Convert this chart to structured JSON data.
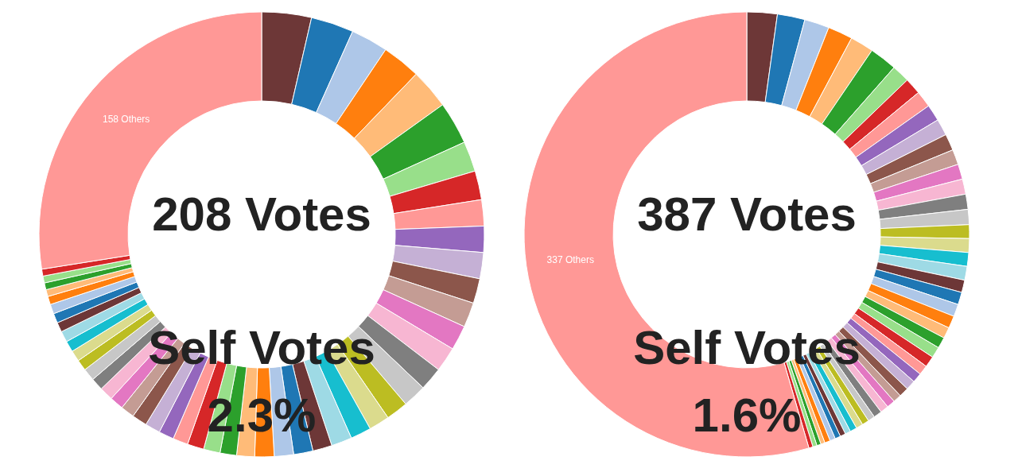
{
  "chart_data": [
    {
      "type": "donut",
      "title": "208 Votes",
      "annotations": [
        "Self Votes",
        "2.3%"
      ],
      "categories": [
        null,
        null,
        null,
        null,
        null,
        null,
        null,
        null,
        null,
        null,
        null,
        null,
        null,
        null,
        null,
        null,
        null,
        null,
        null,
        null,
        null,
        null,
        null,
        null,
        null,
        null,
        null,
        null,
        null,
        null,
        null,
        null,
        null,
        null,
        null,
        null,
        null,
        null,
        null,
        null,
        null,
        null,
        null,
        null,
        null,
        null,
        null,
        null,
        null,
        null,
        "158 Others"
      ],
      "values": [
        3.6,
        3.1,
        2.7,
        2.8,
        2.9,
        3.1,
        2.2,
        2.1,
        1.9,
        1.9,
        1.9,
        1.8,
        1.8,
        1.8,
        1.8,
        1.7,
        1.7,
        1.6,
        1.5,
        1.5,
        1.5,
        1.4,
        1.4,
        1.4,
        1.4,
        1.3,
        1.2,
        1.2,
        1.2,
        1.1,
        1.1,
        1.1,
        1.1,
        1.0,
        1.0,
        1.0,
        0.9,
        0.9,
        0.8,
        0.8,
        0.8,
        0.8,
        0.7,
        0.7,
        0.7,
        0.6,
        0.5,
        0.5,
        0.5,
        0.5,
        27.5
      ],
      "colors": [
        "#6d3737",
        "#1f77b4",
        "#aec7e8",
        "#ff7f0e",
        "#ffbb78",
        "#2ca02c",
        "#98df8a",
        "#d62728",
        "#ff9896",
        "#9467bd",
        "#c5b0d5",
        "#8c564b",
        "#c49c94",
        "#e377c2",
        "#f7b6d2",
        "#7f7f7f",
        "#c7c7c7",
        "#bcbd22",
        "#dbdb8d",
        "#17becf",
        "#9edae5",
        "#6d3737",
        "#1f77b4",
        "#aec7e8",
        "#ff7f0e",
        "#ffbb78",
        "#2ca02c",
        "#98df8a",
        "#d62728",
        "#ff9896",
        "#9467bd",
        "#c5b0d5",
        "#8c564b",
        "#c49c94",
        "#e377c2",
        "#f7b6d2",
        "#7f7f7f",
        "#c7c7c7",
        "#bcbd22",
        "#dbdb8d",
        "#17becf",
        "#9edae5",
        "#6d3737",
        "#1f77b4",
        "#aec7e8",
        "#ff7f0e",
        "#ffbb78",
        "#2ca02c",
        "#98df8a",
        "#d62728",
        "#ff9896"
      ]
    },
    {
      "type": "donut",
      "title": "387 Votes",
      "annotations": [
        "Self Votes",
        "1.6%"
      ],
      "categories": [
        null,
        null,
        null,
        null,
        null,
        null,
        null,
        null,
        null,
        null,
        null,
        null,
        null,
        null,
        null,
        null,
        null,
        null,
        null,
        null,
        null,
        null,
        null,
        null,
        null,
        null,
        null,
        null,
        null,
        null,
        null,
        null,
        null,
        null,
        null,
        null,
        null,
        null,
        null,
        null,
        null,
        null,
        null,
        null,
        null,
        null,
        null,
        null,
        null,
        null,
        "337 Others"
      ],
      "values": [
        2.2,
        2.0,
        1.8,
        1.8,
        1.7,
        2.0,
        1.3,
        1.2,
        1.2,
        1.2,
        1.2,
        1.2,
        1.1,
        1.1,
        1.1,
        1.1,
        1.1,
        1.0,
        1.0,
        1.0,
        1.0,
        0.9,
        0.9,
        0.9,
        0.9,
        0.8,
        0.8,
        0.8,
        0.8,
        0.7,
        0.7,
        0.7,
        0.7,
        0.6,
        0.6,
        0.6,
        0.6,
        0.5,
        0.5,
        0.5,
        0.5,
        0.4,
        0.4,
        0.4,
        0.4,
        0.4,
        0.3,
        0.3,
        0.3,
        0.3,
        54.5
      ],
      "colors": [
        "#6d3737",
        "#1f77b4",
        "#aec7e8",
        "#ff7f0e",
        "#ffbb78",
        "#2ca02c",
        "#98df8a",
        "#d62728",
        "#ff9896",
        "#9467bd",
        "#c5b0d5",
        "#8c564b",
        "#c49c94",
        "#e377c2",
        "#f7b6d2",
        "#7f7f7f",
        "#c7c7c7",
        "#bcbd22",
        "#dbdb8d",
        "#17becf",
        "#9edae5",
        "#6d3737",
        "#1f77b4",
        "#aec7e8",
        "#ff7f0e",
        "#ffbb78",
        "#2ca02c",
        "#98df8a",
        "#d62728",
        "#ff9896",
        "#9467bd",
        "#c5b0d5",
        "#8c564b",
        "#c49c94",
        "#e377c2",
        "#f7b6d2",
        "#7f7f7f",
        "#c7c7c7",
        "#bcbd22",
        "#dbdb8d",
        "#17becf",
        "#9edae5",
        "#6d3737",
        "#1f77b4",
        "#aec7e8",
        "#ff7f0e",
        "#ffbb78",
        "#2ca02c",
        "#98df8a",
        "#d62728",
        "#ff9896"
      ]
    }
  ]
}
